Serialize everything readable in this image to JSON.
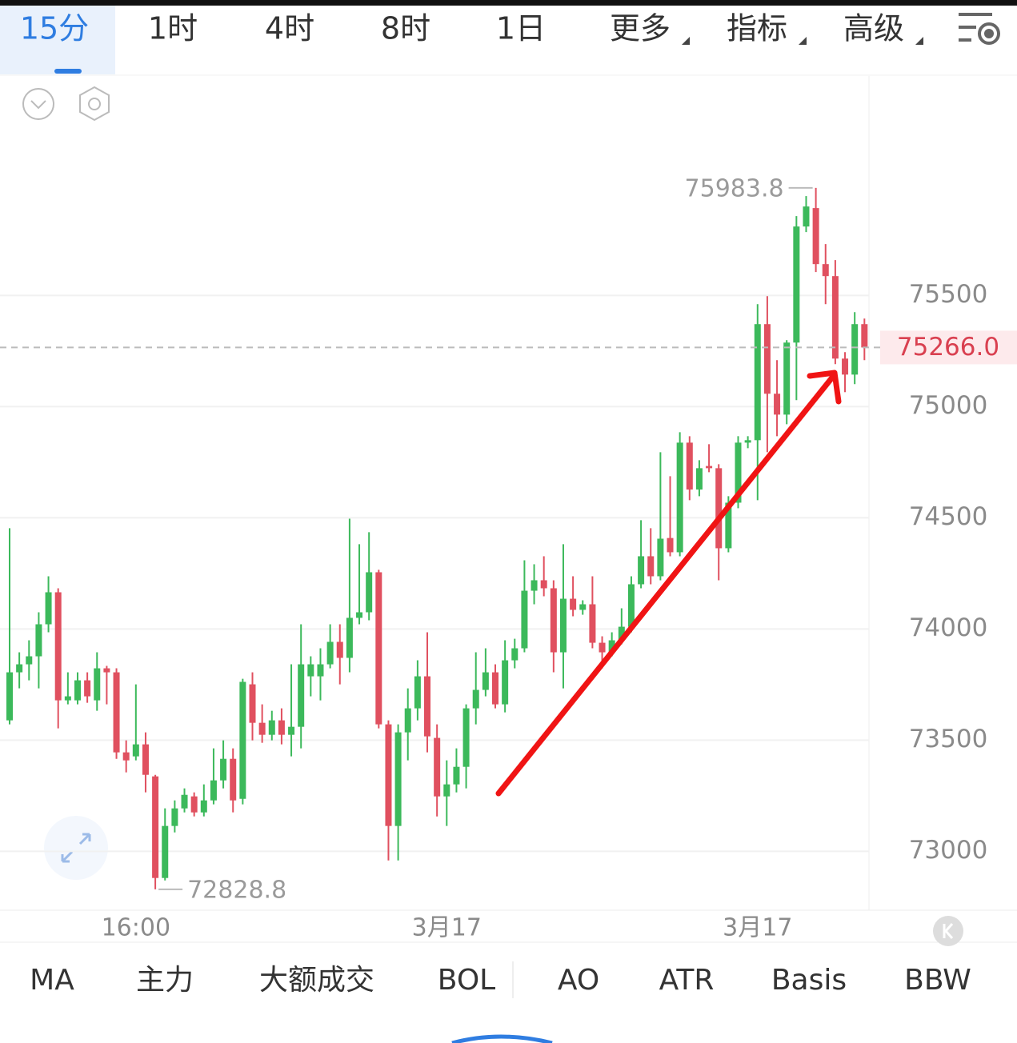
{
  "tabs": {
    "items": [
      "15分",
      "1时",
      "4时",
      "8时",
      "1日",
      "更多",
      "指标",
      "高级"
    ],
    "active": 0
  },
  "indicators": [
    "MA",
    "主力",
    "大额成交",
    "BOL",
    "AO",
    "ATR",
    "Basis",
    "BBW"
  ],
  "chart_data": {
    "type": "candlestick",
    "categories": [
      null,
      null,
      null,
      null,
      null,
      null,
      null,
      null,
      null,
      null,
      null,
      null,
      null,
      "16:00",
      null,
      null,
      null,
      null,
      null,
      null,
      null,
      null,
      null,
      null,
      null,
      null,
      null,
      null,
      null,
      null,
      null,
      null,
      null,
      null,
      null,
      null,
      null,
      null,
      null,
      null,
      null,
      null,
      null,
      null,
      null,
      "3月17",
      null,
      null,
      null,
      null,
      null,
      null,
      null,
      null,
      null,
      null,
      null,
      null,
      null,
      null,
      null,
      null,
      null,
      null,
      null,
      null,
      null,
      null,
      null,
      null,
      null,
      null,
      null,
      null,
      null,
      null,
      null,
      "3月17",
      null,
      null,
      null,
      null,
      null,
      null,
      null,
      null,
      null,
      null,
      null
    ],
    "open": [
      73589,
      73805,
      73841,
      73877,
      74021,
      74165,
      73679,
      73679,
      73769,
      73679,
      73823,
      73805,
      73445,
      73427,
      73481,
      73337,
      72880,
      73114,
      73193,
      73247,
      73175,
      73229,
      73319,
      73416,
      73236,
      73751,
      73578,
      73524,
      73589,
      73524,
      73560,
      73787,
      73787,
      73841,
      73942,
      73870,
      74050,
      74075,
      74255,
      73571,
      73114,
      73535,
      73643,
      73787,
      73510,
      73247,
      73301,
      73380,
      73643,
      73726,
      73805,
      73661,
      73859,
      73913,
      74172,
      74219,
      74183,
      73895,
      74136,
      74086,
      74111,
      73938,
      73895,
      73949,
      74010,
      74201,
      74327,
      74237,
      74409,
      74345,
      74838,
      74627,
      74733,
      74723,
      74363,
      74568,
      74838,
      74849,
      75371,
      75058,
      74964,
      75288,
      75810,
      75893,
      75641,
      75587,
      75216,
      75144,
      75371
    ],
    "high": [
      74453,
      73895,
      73949,
      74075,
      74237,
      74183,
      73805,
      73805,
      73805,
      73895,
      73834,
      73823,
      73499,
      73751,
      73535,
      73344,
      73193,
      73229,
      73283,
      73265,
      73301,
      73463,
      73499,
      73463,
      73776,
      73805,
      73661,
      73632,
      73643,
      73841,
      74021,
      73877,
      73913,
      74021,
      74021,
      74496,
      74381,
      74435,
      74266,
      73589,
      73571,
      73733,
      73859,
      73985,
      73571,
      73409,
      73463,
      73661,
      73895,
      73913,
      73841,
      73949,
      73956,
      74309,
      74291,
      74327,
      74219,
      74381,
      74237,
      74129,
      74237,
      73967,
      73985,
      74093,
      74237,
      74489,
      74453,
      74795,
      74687,
      74885,
      74867,
      74759,
      74831,
      74741,
      74597,
      74867,
      74867,
      75461,
      75497,
      75209,
      75299,
      75857,
      75947,
      75983.8,
      75731,
      75659,
      75245,
      75425,
      75396
    ],
    "low": [
      73571,
      73733,
      73769,
      73733,
      73985,
      73553,
      73661,
      73661,
      73668,
      73632,
      73661,
      73416,
      73355,
      73409,
      73265,
      72828.8,
      72869,
      73085,
      73175,
      73157,
      73157,
      73211,
      73283,
      73175,
      73211,
      73499,
      73488,
      73499,
      73481,
      73427,
      73463,
      73697,
      73679,
      73823,
      73751,
      73805,
      74021,
      74039,
      73553,
      72959,
      72959,
      73409,
      73589,
      73445,
      73157,
      73114,
      73265,
      73283,
      73571,
      73697,
      73643,
      73625,
      73823,
      73895,
      74111,
      74147,
      73805,
      73733,
      74057,
      74064,
      73913,
      73823,
      73877,
      73931,
      73985,
      74183,
      74201,
      74219,
      74327,
      74327,
      74579,
      74597,
      74705,
      74219,
      74345,
      74543,
      74813,
      74579,
      74795,
      74867,
      74921,
      75029,
      75785,
      75605,
      75461,
      75191,
      75065,
      75101,
      75209
    ],
    "close": [
      73805,
      73841,
      73877,
      74021,
      74165,
      73679,
      73697,
      73769,
      73697,
      73823,
      73805,
      73445,
      73409,
      73481,
      73344,
      72880,
      73114,
      73193,
      73254,
      73175,
      73229,
      73319,
      73416,
      73229,
      73762,
      73578,
      73524,
      73589,
      73524,
      73560,
      73841,
      73841,
      73841,
      73942,
      73870,
      74050,
      74075,
      74255,
      73571,
      73114,
      73535,
      73643,
      73787,
      73517,
      73247,
      73301,
      73380,
      73643,
      73726,
      73805,
      73661,
      73859,
      73913,
      74172,
      74219,
      74183,
      73895,
      74136,
      74086,
      74111,
      73938,
      73895,
      73949,
      74010,
      74201,
      74327,
      74237,
      74406,
      74345,
      74838,
      74627,
      74723,
      74723,
      74363,
      74568,
      74838,
      74849,
      75371,
      75058,
      74964,
      75288,
      75810,
      75900,
      75641,
      75587,
      75216,
      75144,
      75371,
      75266
    ],
    "colors": {
      "up": "#3cb95b",
      "down": "#e0505f"
    },
    "ylim": [
      72735,
      76487
    ],
    "yticks": [
      73000,
      73500,
      74000,
      74500,
      75000,
      75500
    ],
    "grid": true,
    "last_price": {
      "value": 75266,
      "label": "75266.0"
    },
    "max_label": 75983.8,
    "min_label": 72828.8
  }
}
